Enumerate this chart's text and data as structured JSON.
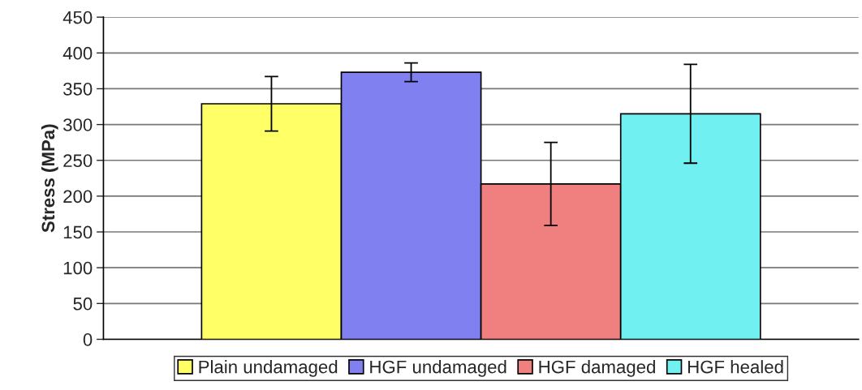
{
  "chart_data": {
    "type": "bar",
    "ylabel": "Stress (MPa)",
    "categories": [
      null
    ],
    "series": [
      {
        "name": "Plain undamaged",
        "color": "#ffff66",
        "values": [
          329
        ],
        "errors": [
          38
        ]
      },
      {
        "name": "HGF undamaged",
        "color": "#8080f0",
        "values": [
          373
        ],
        "errors": [
          13
        ]
      },
      {
        "name": "HGF damaged",
        "color": "#f08080",
        "values": [
          217
        ],
        "errors": [
          58
        ]
      },
      {
        "name": "HGF healed",
        "color": "#70f0f0",
        "values": [
          315
        ],
        "errors": [
          69
        ]
      }
    ],
    "ylim": [
      0,
      450
    ],
    "yticks": [
      0,
      50,
      100,
      150,
      200,
      250,
      300,
      350,
      400,
      450
    ],
    "grid": "y",
    "legend": "bottom"
  }
}
